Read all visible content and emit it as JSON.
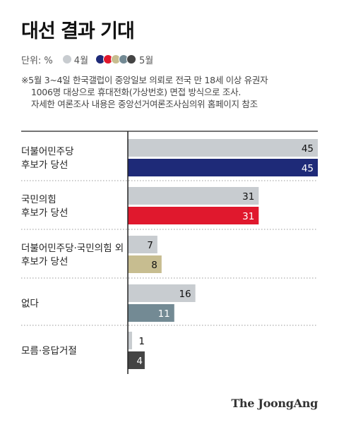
{
  "title": "대선 결과 기대",
  "legend": {
    "unit": "단위: %",
    "series_a": "4월",
    "series_b": "5월",
    "series_b_dots": [
      "#1e2a78",
      "#e0182d",
      "#c7bd90",
      "#738a94",
      "#444444"
    ]
  },
  "note": [
    "※5월 3~4일 한국갤럽이 중앙일보 의뢰로 전국 만 18세 이상 유권자",
    "1006명 대상으로 휴대전화(가상번호) 면접 방식으로 조사.",
    "자세한 여론조사 내용은 중앙선거여론조사심의위 홈페이지 참조"
  ],
  "source": "The JoongAng",
  "chart_data": {
    "type": "bar",
    "orientation": "horizontal",
    "categories": [
      [
        "더불어민주당",
        "후보가 당선"
      ],
      [
        "국민의힘",
        "후보가 당선"
      ],
      [
        "더불어민주당·국민의힘 외",
        "후보가 당선"
      ],
      [
        "없다"
      ],
      [
        "모름·응답거절"
      ]
    ],
    "series": [
      {
        "name": "4월",
        "values": [
          45,
          31,
          7,
          16,
          1
        ],
        "colors": [
          "#c8ccd0",
          "#c8ccd0",
          "#c8ccd0",
          "#c8ccd0",
          "#c8ccd0"
        ]
      },
      {
        "name": "5월",
        "values": [
          45,
          31,
          8,
          11,
          4
        ],
        "colors": [
          "#1e2a78",
          "#e0182d",
          "#c7bd90",
          "#738a94",
          "#444444"
        ]
      }
    ],
    "xlim": [
      0,
      45
    ],
    "unit": "%"
  }
}
